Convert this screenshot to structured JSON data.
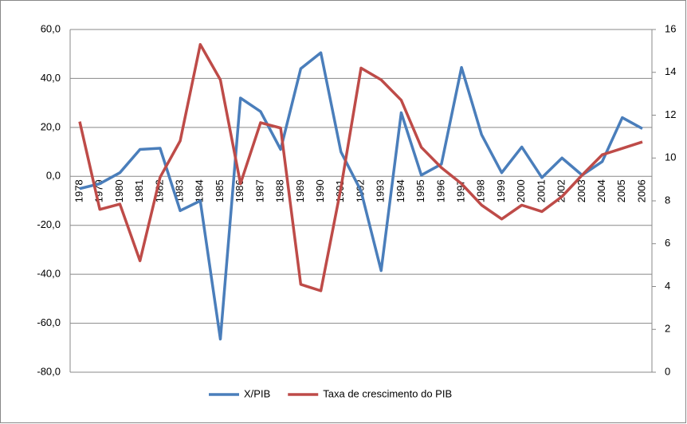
{
  "chart_data": {
    "type": "line",
    "categories": [
      "1978",
      "1979",
      "1980",
      "1981",
      "1982",
      "1983",
      "1984",
      "1985",
      "1986",
      "1987",
      "1988",
      "1989",
      "1990",
      "1991",
      "1992",
      "1993",
      "1994",
      "1995",
      "1996",
      "1997",
      "1998",
      "1999",
      "2000",
      "2001",
      "2002",
      "2003",
      "2004",
      "2005",
      "2006"
    ],
    "series": [
      {
        "name": "X/PIB",
        "color": "#4a7ebb",
        "values": [
          -5,
          -3,
          1.5,
          11,
          11.5,
          -14,
          -10,
          -66.5,
          32,
          26.5,
          11,
          44,
          50.5,
          10,
          -6,
          -38.5,
          26,
          0.5,
          5,
          44.5,
          17,
          1.5,
          12,
          -0.5,
          7.5,
          0.5,
          6,
          24,
          19.5
        ]
      },
      {
        "name": "Taxa de crescimento do PIB",
        "color": "#be4b48",
        "axis": "y2",
        "values": [
          11.7,
          7.6,
          7.85,
          5.2,
          9.1,
          10.8,
          15.3,
          13.65,
          8.8,
          11.65,
          11.4,
          4.1,
          3.8,
          8.6,
          14.2,
          13.65,
          12.7,
          10.5,
          9.55,
          8.8,
          7.8,
          7.15,
          7.8,
          7.5,
          8.2,
          9.2,
          10.15,
          10.45,
          10.75
        ]
      }
    ],
    "ylim": [
      -80,
      60
    ],
    "yticks": [
      {
        "value": -80,
        "label": "-80,0"
      },
      {
        "value": -60,
        "label": "-60,0"
      },
      {
        "value": -40,
        "label": "-40,0"
      },
      {
        "value": -20,
        "label": "-20,0"
      },
      {
        "value": 0,
        "label": "0,0"
      },
      {
        "value": 20,
        "label": "20,0"
      },
      {
        "value": 40,
        "label": "40,0"
      },
      {
        "value": 60,
        "label": "60,0"
      }
    ],
    "y2lim": [
      0,
      16
    ],
    "y2ticks": [
      0,
      2,
      4,
      6,
      8,
      10,
      12,
      14,
      16
    ],
    "grid": true,
    "legend": "bottom"
  }
}
